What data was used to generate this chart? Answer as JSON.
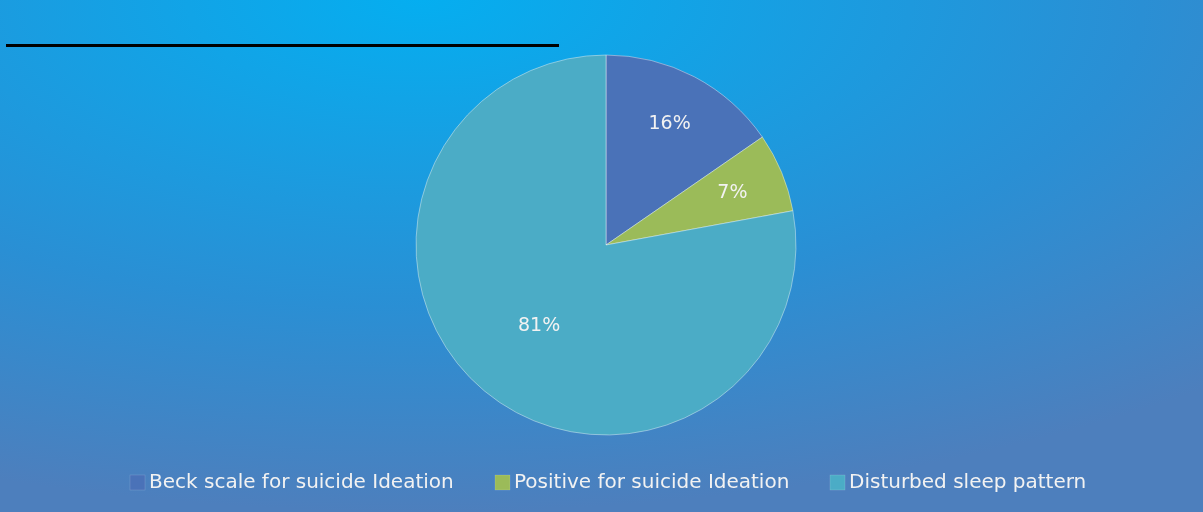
{
  "chart_data": {
    "type": "pie",
    "categories": [
      "Beck scale for suicide Ideation",
      "Positive for suicide Ideation",
      "Disturbed sleep pattern"
    ],
    "values": [
      16,
      7,
      81
    ],
    "colors": [
      "#4a72b8",
      "#9bbb59",
      "#4bacc6"
    ],
    "value_labels": [
      "16%",
      "7%",
      "81%"
    ],
    "legend": "bottom"
  }
}
